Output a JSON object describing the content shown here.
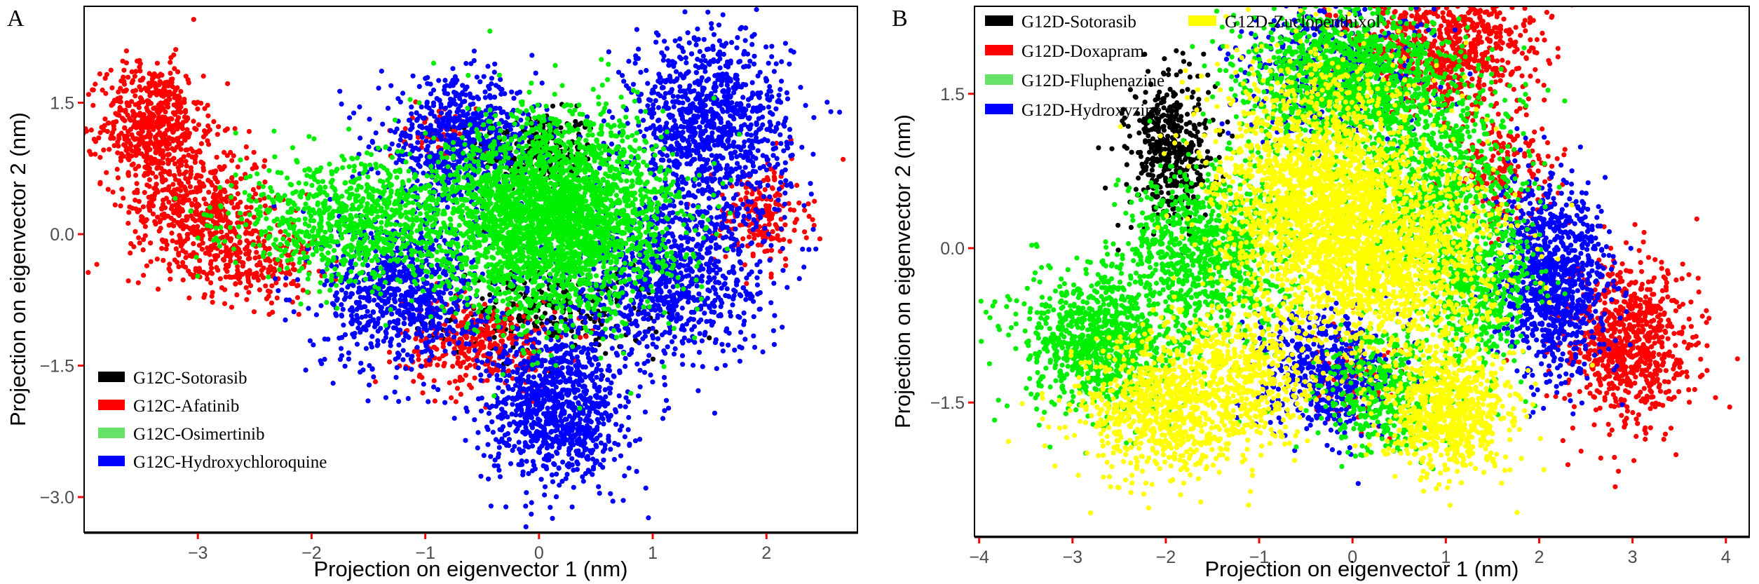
{
  "figure": {
    "panels": [
      "A",
      "B"
    ]
  },
  "chart_data": [
    {
      "panel": "A",
      "type": "scatter",
      "title": "",
      "xlabel": "Projection on eigenvector 1 (nm)",
      "ylabel": "Projection on eigenvector 2 (nm)",
      "xlim": [
        -4.0,
        2.8
      ],
      "ylim": [
        -3.4,
        2.6
      ],
      "xticks": [
        -3,
        -2,
        -1,
        0,
        1,
        2
      ],
      "xtick_labels": [
        "-3",
        "-2",
        "-1",
        "0",
        "1",
        "2"
      ],
      "yticks": [
        1.5,
        0.0,
        -1.5,
        -3.0
      ],
      "ytick_labels": [
        "1.5",
        "0.0",
        "-1.5",
        "-3.0"
      ],
      "grid": false,
      "legend_position": "bottom-left",
      "legend": [
        {
          "label": "G12C-Sotorasib",
          "color": "#000000"
        },
        {
          "label": "G12C-Afatinib",
          "color": "#ff0000"
        },
        {
          "label": "G12C-Osimertinib",
          "color": "#66e366"
        },
        {
          "label": "G12C-Hydroxychloroquine",
          "color": "#0000ff"
        }
      ],
      "series": [
        {
          "name": "G12C-Sotorasib",
          "color": "#000000",
          "clusters": [
            {
              "cx": -0.05,
              "cy": 0.95,
              "sx": 0.28,
              "sy": 0.22,
              "n": 260
            },
            {
              "cx": 0.1,
              "cy": -0.9,
              "sx": 0.5,
              "sy": 0.25,
              "n": 260
            }
          ]
        },
        {
          "name": "G12C-Afatinib",
          "color": "#ff0000",
          "clusters": [
            {
              "cx": -3.4,
              "cy": 1.25,
              "sx": 0.22,
              "sy": 0.35,
              "n": 600
            },
            {
              "cx": -3.0,
              "cy": 0.3,
              "sx": 0.3,
              "sy": 0.35,
              "n": 500
            },
            {
              "cx": -2.55,
              "cy": -0.3,
              "sx": 0.3,
              "sy": 0.25,
              "n": 250
            },
            {
              "cx": -0.5,
              "cy": -1.25,
              "sx": 0.35,
              "sy": 0.25,
              "n": 350
            },
            {
              "cx": 1.95,
              "cy": 0.2,
              "sx": 0.2,
              "sy": 0.3,
              "n": 200
            },
            {
              "cx": -0.85,
              "cy": 1.15,
              "sx": 0.15,
              "sy": 0.15,
              "n": 60
            }
          ]
        },
        {
          "name": "G12C-Hydroxychloroquine",
          "color": "#0000ff",
          "clusters": [
            {
              "cx": -0.7,
              "cy": 1.05,
              "sx": 0.35,
              "sy": 0.35,
              "n": 700
            },
            {
              "cx": 1.5,
              "cy": 1.2,
              "sx": 0.35,
              "sy": 0.55,
              "n": 1100
            },
            {
              "cx": -1.2,
              "cy": -0.65,
              "sx": 0.35,
              "sy": 0.45,
              "n": 800
            },
            {
              "cx": 1.1,
              "cy": -0.5,
              "sx": 0.45,
              "sy": 0.45,
              "n": 900
            },
            {
              "cx": 0.15,
              "cy": -1.95,
              "sx": 0.3,
              "sy": 0.45,
              "n": 1000
            }
          ]
        },
        {
          "name": "G12C-Osimertinib",
          "color": "#00ee00",
          "clusters": [
            {
              "cx": 0.15,
              "cy": 0.2,
              "sx": 0.5,
              "sy": 0.55,
              "n": 3000
            },
            {
              "cx": -1.6,
              "cy": 0.15,
              "sx": 0.55,
              "sy": 0.35,
              "n": 900
            }
          ]
        }
      ]
    },
    {
      "panel": "B",
      "type": "scatter",
      "title": "",
      "xlabel": "Projection on eigenvector 1 (nm)",
      "ylabel": "Projection on eigenvector 2 (nm)",
      "xlim": [
        -4.05,
        4.25
      ],
      "ylim": [
        -2.8,
        2.35
      ],
      "xticks": [
        -4,
        -3,
        -2,
        -1,
        0,
        1,
        2,
        3,
        4
      ],
      "xtick_labels": [
        "-4",
        "-3",
        "-2",
        "-1",
        "0",
        "1",
        "2",
        "3",
        "4"
      ],
      "yticks": [
        1.5,
        0.0,
        -1.5
      ],
      "ytick_labels": [
        "1.5",
        "0.0",
        "-1.5"
      ],
      "grid": false,
      "legend_position": "top-left",
      "legend": [
        {
          "label": "G12D-Sotorasib",
          "color": "#000000"
        },
        {
          "label": "G12D-Zuclopenthixol",
          "color": "#ffff00"
        },
        {
          "label": "G12D-Doxapram",
          "color": "#ff0000"
        },
        {
          "label": "G12D-Fluphenazine",
          "color": "#66e366"
        },
        {
          "label": "G12D-Hydroxyzine",
          "color": "#0000ff"
        }
      ],
      "series": [
        {
          "name": "G12D-Sotorasib",
          "color": "#000000",
          "clusters": [
            {
              "cx": -1.95,
              "cy": 0.95,
              "sx": 0.22,
              "sy": 0.35,
              "n": 450
            }
          ]
        },
        {
          "name": "G12D-Doxapram",
          "color": "#ff0000",
          "clusters": [
            {
              "cx": 1.0,
              "cy": 1.95,
              "sx": 0.5,
              "sy": 0.3,
              "n": 800
            },
            {
              "cx": 2.95,
              "cy": -0.95,
              "sx": 0.35,
              "sy": 0.4,
              "n": 800
            },
            {
              "cx": 1.6,
              "cy": 0.7,
              "sx": 0.3,
              "sy": 0.3,
              "n": 200
            },
            {
              "cx": 0.0,
              "cy": -1.25,
              "sx": 0.3,
              "sy": 0.2,
              "n": 120
            }
          ]
        },
        {
          "name": "G12D-Hydroxyzine",
          "color": "#0000ff",
          "clusters": [
            {
              "cx": 2.15,
              "cy": -0.3,
              "sx": 0.3,
              "sy": 0.45,
              "n": 1000
            },
            {
              "cx": -0.3,
              "cy": -1.2,
              "sx": 0.35,
              "sy": 0.3,
              "n": 500
            },
            {
              "cx": -0.2,
              "cy": 1.75,
              "sx": 0.55,
              "sy": 0.35,
              "n": 400
            }
          ]
        },
        {
          "name": "G12D-Fluphenazine",
          "color": "#00ee00",
          "clusters": [
            {
              "cx": -0.05,
              "cy": 1.65,
              "sx": 0.55,
              "sy": 0.35,
              "n": 1400
            },
            {
              "cx": -2.75,
              "cy": -0.9,
              "sx": 0.4,
              "sy": 0.35,
              "n": 900
            },
            {
              "cx": -1.55,
              "cy": -0.1,
              "sx": 0.45,
              "sy": 0.45,
              "n": 1000
            },
            {
              "cx": 0.9,
              "cy": 0.6,
              "sx": 0.45,
              "sy": 0.5,
              "n": 800
            },
            {
              "cx": 1.35,
              "cy": -0.4,
              "sx": 0.3,
              "sy": 0.4,
              "n": 500
            },
            {
              "cx": 0.3,
              "cy": -1.4,
              "sx": 0.3,
              "sy": 0.3,
              "n": 400
            }
          ]
        },
        {
          "name": "G12D-Zuclopenthixol",
          "color": "#ffff00",
          "clusters": [
            {
              "cx": -0.35,
              "cy": 0.5,
              "sx": 0.55,
              "sy": 0.6,
              "n": 2200
            },
            {
              "cx": 0.55,
              "cy": -0.1,
              "sx": 0.55,
              "sy": 0.45,
              "n": 1200
            },
            {
              "cx": -2.0,
              "cy": -1.55,
              "sx": 0.45,
              "sy": 0.35,
              "n": 900
            },
            {
              "cx": 1.05,
              "cy": -1.6,
              "sx": 0.35,
              "sy": 0.3,
              "n": 800
            },
            {
              "cx": -1.1,
              "cy": -1.2,
              "sx": 0.35,
              "sy": 0.35,
              "n": 400
            }
          ]
        }
      ]
    }
  ]
}
